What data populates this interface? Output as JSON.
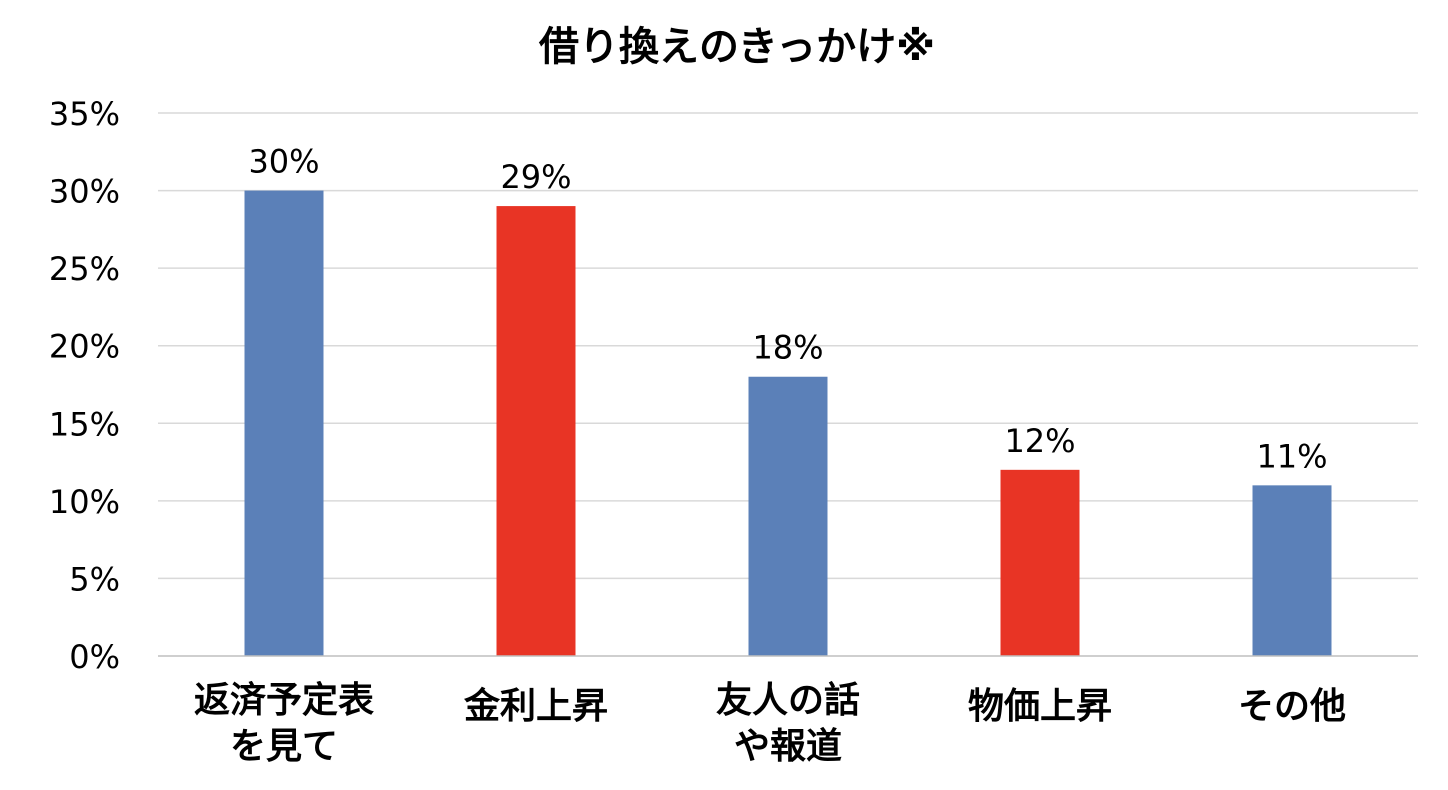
{
  "chart_data": {
    "type": "bar",
    "title": "借り換えのきっかけ※",
    "categories": [
      [
        "返済予定表",
        "を見て"
      ],
      [
        "金利上昇"
      ],
      [
        "友人の話",
        "や報道"
      ],
      [
        "物価上昇"
      ],
      [
        "その他"
      ]
    ],
    "values": [
      30,
      29,
      18,
      12,
      11
    ],
    "data_labels": [
      "30%",
      "29%",
      "18%",
      "12%",
      "11%"
    ],
    "bar_colors": [
      "#5b80b8",
      "#e83425",
      "#5b80b8",
      "#e83425",
      "#5b80b8"
    ],
    "ylim": [
      0,
      35
    ],
    "yticks": [
      0,
      5,
      10,
      15,
      20,
      25,
      30,
      35
    ],
    "ytick_labels": [
      "0%",
      "5%",
      "10%",
      "15%",
      "20%",
      "25%",
      "30%",
      "35%"
    ],
    "xlabel": "",
    "ylabel": "",
    "grid": true,
    "legend": "none"
  }
}
